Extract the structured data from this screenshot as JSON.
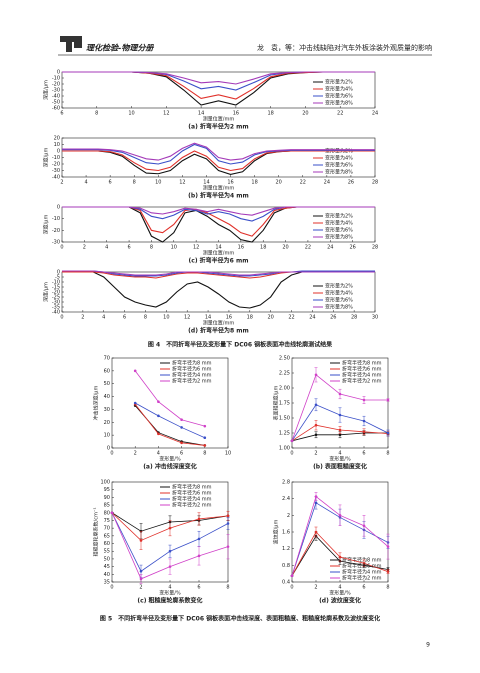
{
  "header": {
    "journal": "理化检验-物理分册",
    "running_title": "龙　袁，等：冲击线缺陷对汽车外板涂装外观质量的影响"
  },
  "figure4_caption": "图 4　不同折弯半径及变形量下 DC06 钢板表面冲击线轮廓测试结果",
  "figure5_caption": "图 5　不同折弯半径及变形量下 DC06 钢板表面冲击线深度、表面粗糙度、粗糙度轮廓系数及波纹度变化",
  "page_number": "9",
  "chart_data": [
    {
      "type": "line",
      "title": "(a) 折弯半径为2 mm",
      "x_label": "测量位置/mm",
      "y_label": "深度/μm",
      "legend": "lower right",
      "x": [
        6,
        7,
        8,
        9,
        10,
        11,
        12,
        13,
        14,
        15,
        16,
        17,
        18,
        19,
        20,
        21,
        22,
        23,
        24
      ],
      "xlim": [
        6,
        24
      ],
      "xticks": [
        6,
        8,
        10,
        12,
        14,
        16,
        18,
        20,
        22,
        24
      ],
      "ylim": [
        -60,
        0
      ],
      "yticks": [
        0,
        -10,
        -20,
        -30,
        -40,
        -50,
        -60
      ],
      "series": [
        {
          "name": "变形量为2%",
          "color": "#111111",
          "values": [
            0,
            0,
            0,
            0,
            0,
            -2,
            -8,
            -30,
            -55,
            -48,
            -55,
            -35,
            -10,
            -3,
            -1,
            0,
            0,
            0,
            0
          ]
        },
        {
          "name": "变形量为4%",
          "color": "#e0302a",
          "values": [
            0,
            0,
            0,
            0,
            0,
            -2,
            -6,
            -24,
            -44,
            -38,
            -45,
            -28,
            -8,
            -2,
            -1,
            0,
            0,
            0,
            0
          ]
        },
        {
          "name": "变形量为6%",
          "color": "#3a4fc8",
          "values": [
            0,
            0,
            0,
            0,
            0,
            -1,
            -4,
            -15,
            -28,
            -24,
            -30,
            -18,
            -5,
            -1,
            0,
            0,
            0,
            0,
            0
          ]
        },
        {
          "name": "变形量为8%",
          "color": "#a43ab8",
          "values": [
            0,
            0,
            0,
            0,
            0,
            -1,
            -3,
            -10,
            -18,
            -16,
            -20,
            -12,
            -3,
            -1,
            0,
            0,
            0,
            0,
            0
          ]
        }
      ]
    },
    {
      "type": "line",
      "title": "(b) 折弯半径为4 mm",
      "x_label": "测量位置/mm",
      "y_label": "深度/μm",
      "legend": "lower right",
      "x": [
        2,
        3,
        4,
        5,
        6,
        7,
        8,
        9,
        10,
        11,
        12,
        13,
        14,
        15,
        16,
        17,
        18,
        19,
        20,
        21,
        22,
        23,
        24,
        25,
        26,
        27,
        28
      ],
      "xlim": [
        2,
        28
      ],
      "xticks": [
        2,
        4,
        6,
        8,
        10,
        12,
        14,
        16,
        18,
        20,
        22,
        24,
        26,
        28
      ],
      "ylim": [
        -40,
        20
      ],
      "yticks": [
        20,
        10,
        0,
        -10,
        -20,
        -30,
        -40
      ],
      "series": [
        {
          "name": "变形量为2%",
          "color": "#111111",
          "values": [
            0,
            0,
            0,
            0,
            -2,
            -8,
            -22,
            -34,
            -35,
            -30,
            -15,
            -5,
            -12,
            -30,
            -36,
            -32,
            -15,
            -4,
            -1,
            0,
            0,
            0,
            0,
            0,
            0,
            0,
            0
          ]
        },
        {
          "name": "变形量为4%",
          "color": "#e0302a",
          "values": [
            0,
            0,
            0,
            0,
            -1,
            -6,
            -18,
            -28,
            -30,
            -25,
            -10,
            0,
            -8,
            -25,
            -30,
            -27,
            -12,
            -3,
            -1,
            0,
            0,
            0,
            0,
            0,
            0,
            0,
            0
          ]
        },
        {
          "name": "变形量为6%",
          "color": "#3a4fc8",
          "values": [
            2,
            2,
            2,
            2,
            1,
            -2,
            -10,
            -18,
            -20,
            -15,
            0,
            10,
            4,
            -15,
            -20,
            -17,
            -6,
            -1,
            0,
            1,
            1,
            1,
            1,
            1,
            1,
            1,
            1
          ]
        },
        {
          "name": "变形量为8%",
          "color": "#a43ab8",
          "values": [
            3,
            3,
            3,
            3,
            2,
            0,
            -6,
            -12,
            -14,
            -8,
            4,
            12,
            6,
            -10,
            -14,
            -12,
            -4,
            0,
            1,
            2,
            2,
            2,
            2,
            2,
            2,
            2,
            2
          ]
        }
      ]
    },
    {
      "type": "line",
      "title": "(c) 折弯半径为6 mm",
      "x_label": "测量位置/mm",
      "y_label": "深度/μm",
      "legend": "lower right",
      "x": [
        0,
        1,
        2,
        3,
        4,
        5,
        6,
        7,
        8,
        9,
        10,
        11,
        12,
        13,
        14,
        15,
        16,
        17,
        18,
        19,
        20,
        21,
        22,
        23,
        24,
        25,
        26,
        27,
        28
      ],
      "xlim": [
        0,
        28
      ],
      "xticks": [
        0,
        2,
        4,
        6,
        8,
        10,
        12,
        14,
        16,
        18,
        20,
        22,
        24,
        26,
        28
      ],
      "ylim": [
        -30,
        0
      ],
      "yticks": [
        0,
        -10,
        -20,
        -30
      ],
      "series": [
        {
          "name": "变形量为2%",
          "color": "#111111",
          "values": [
            0,
            0,
            0,
            0,
            0,
            0,
            0,
            -5,
            -25,
            -30,
            -22,
            -5,
            -3,
            -8,
            -15,
            -20,
            -28,
            -30,
            -20,
            -5,
            -1,
            0,
            0,
            0,
            0,
            0,
            0,
            0,
            0
          ]
        },
        {
          "name": "变形量为4%",
          "color": "#e0302a",
          "values": [
            0,
            0,
            0,
            0,
            0,
            0,
            0,
            -3,
            -20,
            -22,
            -15,
            -3,
            -2,
            -5,
            -10,
            -15,
            -22,
            -25,
            -15,
            -3,
            -1,
            0,
            0,
            0,
            0,
            0,
            0,
            0,
            0
          ]
        },
        {
          "name": "变形量为6%",
          "color": "#3a4fc8",
          "values": [
            0,
            0,
            0,
            0,
            0,
            0,
            0,
            -2,
            -8,
            -10,
            -7,
            -2,
            -3,
            -6,
            -4,
            -6,
            -10,
            -12,
            -8,
            -2,
            0,
            0,
            0,
            0,
            0,
            0,
            0,
            0,
            0
          ]
        },
        {
          "name": "变形量为8%",
          "color": "#a43ab8",
          "values": [
            0,
            0,
            0,
            0,
            0,
            0,
            0,
            -1,
            -5,
            -6,
            -4,
            -1,
            -2,
            -4,
            -2,
            -4,
            -6,
            -7,
            -4,
            -1,
            0,
            0,
            0,
            0,
            0,
            0,
            0,
            0,
            0
          ]
        }
      ]
    },
    {
      "type": "line",
      "title": "(d) 折弯半径为8 mm",
      "x_label": "测量位置/mm",
      "y_label": "深度/μm",
      "legend": "lower right",
      "x": [
        0,
        1,
        2,
        3,
        4,
        5,
        6,
        7,
        8,
        9,
        10,
        11,
        12,
        13,
        14,
        15,
        16,
        17,
        18,
        19,
        20,
        21,
        22,
        23,
        24,
        25,
        26,
        27,
        28,
        29,
        30
      ],
      "xlim": [
        0,
        30
      ],
      "xticks": [
        0,
        2,
        4,
        6,
        8,
        10,
        12,
        14,
        16,
        18,
        20,
        22,
        24,
        26,
        28,
        30
      ],
      "ylim": [
        -40,
        0
      ],
      "yticks": [
        0,
        -5,
        -10,
        -15,
        -20,
        -25,
        -30,
        -35,
        -40
      ],
      "series": [
        {
          "name": "变形量为2%",
          "color": "#111111",
          "values": [
            0,
            0,
            0,
            0,
            -5,
            -15,
            -25,
            -30,
            -33,
            -35,
            -30,
            -20,
            -12,
            -10,
            -15,
            -22,
            -30,
            -35,
            -36,
            -33,
            -25,
            -10,
            -3,
            0,
            0,
            0,
            0,
            0,
            0,
            0,
            0
          ]
        },
        {
          "name": "变形量为4%",
          "color": "#e0302a",
          "values": [
            0,
            0,
            0,
            0,
            -1,
            -3,
            -4,
            -5,
            -5,
            -6,
            -4,
            -2,
            -1,
            -1,
            -2,
            -3,
            -4,
            -5,
            -6,
            -5,
            -3,
            -1,
            0,
            0,
            0,
            0,
            0,
            0,
            0,
            0,
            0
          ]
        },
        {
          "name": "变形量为6%",
          "color": "#3a4fc8",
          "values": [
            1,
            1,
            1,
            1,
            0,
            -2,
            -3,
            -4,
            -4,
            -4,
            -3,
            -1,
            0,
            0,
            -1,
            -2,
            -3,
            -4,
            -4,
            -3,
            -2,
            0,
            0,
            1,
            1,
            1,
            1,
            1,
            1,
            1,
            1
          ]
        },
        {
          "name": "变形量为8%",
          "color": "#a43ab8",
          "values": [
            1,
            1,
            1,
            1,
            0,
            -1,
            -2,
            -3,
            -3,
            -3,
            -2,
            0,
            0,
            0,
            0,
            -1,
            -2,
            -3,
            -3,
            -2,
            -1,
            0,
            0,
            0,
            0,
            0,
            0,
            0,
            0,
            0,
            0
          ]
        }
      ]
    },
    {
      "type": "line",
      "markers": true,
      "title": "(a) 冲击线深度变化",
      "x_label": "变形量/%",
      "y_label": "冲击线深度/μm",
      "legend": "upper right",
      "x": [
        2,
        4,
        6,
        8
      ],
      "xlim": [
        0,
        10
      ],
      "xticks": [
        0,
        2,
        4,
        6,
        8,
        10
      ],
      "ylim": [
        0,
        70
      ],
      "yticks": [
        0,
        10,
        20,
        30,
        40,
        50,
        60,
        70
      ],
      "series": [
        {
          "name": "折弯半径为8 mm",
          "color": "#111111",
          "values": [
            33,
            12,
            5,
            2
          ]
        },
        {
          "name": "折弯半径为6 mm",
          "color": "#e0302a",
          "values": [
            34,
            11,
            4,
            2
          ]
        },
        {
          "name": "折弯半径为4 mm",
          "color": "#3a4fc8",
          "values": [
            35,
            25,
            16,
            8
          ]
        },
        {
          "name": "折弯半径为2 mm",
          "color": "#d040c8",
          "values": [
            60,
            36,
            22,
            17
          ]
        }
      ]
    },
    {
      "type": "line",
      "markers": true,
      "title": "(b) 表面粗糙度变化",
      "x_label": "变形量/%",
      "y_label": "表面粗糙度/μm",
      "legend": "upper right",
      "x": [
        0,
        2,
        4,
        6,
        8
      ],
      "xlim": [
        0,
        8
      ],
      "xticks": [
        0,
        2,
        4,
        6,
        8
      ],
      "ylim": [
        1.0,
        2.5
      ],
      "yticks": [
        {
          "value": 1.0,
          "label": "1.00"
        },
        1.25,
        {
          "value": 1.5,
          "label": "1.50"
        },
        1.75,
        {
          "value": 2.0,
          "label": "2.00"
        },
        2.25,
        {
          "value": 2.5,
          "label": "2.50"
        }
      ],
      "series": [
        {
          "name": "折弯半径为8 mm",
          "color": "#111111",
          "values": [
            1.12,
            1.22,
            1.22,
            1.25,
            1.25
          ],
          "errors": [
            0,
            0.05,
            0.05,
            0.04,
            0.03
          ]
        },
        {
          "name": "折弯半径为6 mm",
          "color": "#e0302a",
          "values": [
            1.12,
            1.38,
            1.3,
            1.27,
            1.24
          ],
          "errors": [
            0,
            0.08,
            0.06,
            0.05,
            0.04
          ]
        },
        {
          "name": "折弯半径为4 mm",
          "color": "#3a4fc8",
          "values": [
            1.12,
            1.72,
            1.55,
            1.45,
            1.25
          ],
          "errors": [
            0,
            0.1,
            0.12,
            0.08,
            0.05
          ]
        },
        {
          "name": "折弯半径为2 mm",
          "color": "#d040c8",
          "values": [
            1.12,
            2.22,
            1.9,
            1.8,
            1.8
          ],
          "errors": [
            0,
            0.12,
            0.08,
            0.06,
            0.02
          ]
        }
      ]
    },
    {
      "type": "line",
      "markers": true,
      "title": "(c) 粗糙度轮廓系数变化",
      "x_label": "变形量/%",
      "y_label": "粗糙度轮廓系数/cm⁻¹",
      "legend": "upper right",
      "x": [
        0,
        2,
        4,
        6,
        8
      ],
      "xlim": [
        0,
        8
      ],
      "xticks": [
        0,
        2,
        4,
        6,
        8
      ],
      "ylim": [
        35,
        100
      ],
      "yticks": [
        35,
        40,
        45,
        50,
        55,
        60,
        65,
        70,
        75,
        80,
        85,
        90,
        95,
        100
      ],
      "series": [
        {
          "name": "折弯半径为8 mm",
          "color": "#111111",
          "values": [
            80,
            68,
            74,
            75,
            78
          ],
          "errors": [
            0,
            5,
            4,
            3,
            3
          ]
        },
        {
          "name": "折弯半径为6 mm",
          "color": "#e0302a",
          "values": [
            80,
            62,
            70,
            76,
            78
          ],
          "errors": [
            0,
            6,
            5,
            4,
            3
          ]
        },
        {
          "name": "折弯半径为4 mm",
          "color": "#3a4fc8",
          "values": [
            80,
            42,
            55,
            63,
            73
          ],
          "errors": [
            0,
            4,
            4,
            5,
            4
          ]
        },
        {
          "name": "折弯半径为2 mm",
          "color": "#d040c8",
          "values": [
            80,
            37,
            45,
            52,
            58
          ],
          "errors": [
            0,
            3,
            5,
            6,
            8
          ]
        }
      ]
    },
    {
      "type": "line",
      "markers": true,
      "title": "(d) 波纹度变化",
      "x_label": "变形量/%",
      "y_label": "波纹度/μm",
      "legend": "lower right",
      "x": [
        0,
        2,
        4,
        6,
        8
      ],
      "xlim": [
        0,
        8
      ],
      "xticks": [
        0,
        2,
        4,
        6,
        8
      ],
      "ylim": [
        0.4,
        2.8
      ],
      "yticks": [
        0.4,
        0.8,
        1.2,
        1.6,
        2.0,
        2.4,
        2.8
      ],
      "series": [
        {
          "name": "折弯半径为8 mm",
          "color": "#111111",
          "values": [
            0.55,
            1.5,
            0.9,
            0.8,
            0.7
          ],
          "errors": [
            0,
            0.1,
            0.08,
            0.06,
            0.05
          ]
        },
        {
          "name": "折弯半径为6 mm",
          "color": "#e0302a",
          "values": [
            0.55,
            1.6,
            1.0,
            0.85,
            0.65
          ],
          "errors": [
            0,
            0.12,
            0.1,
            0.08,
            0.05
          ]
        },
        {
          "name": "折弯半径为4 mm",
          "color": "#3a4fc8",
          "values": [
            0.55,
            2.3,
            1.95,
            1.65,
            1.35
          ],
          "errors": [
            0,
            0.15,
            0.2,
            0.2,
            0.15
          ]
        },
        {
          "name": "折弯半径为2 mm",
          "color": "#d040c8",
          "values": [
            0.55,
            2.45,
            2.0,
            1.75,
            1.25
          ],
          "errors": [
            0,
            0.1,
            0.25,
            0.25,
            0.3
          ]
        }
      ]
    }
  ]
}
